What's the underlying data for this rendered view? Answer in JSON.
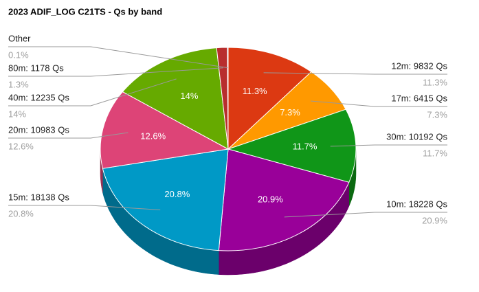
{
  "chart_data": {
    "type": "pie3d",
    "title": "2023 ADIF_LOG C21TS - Qs by band",
    "categories": [
      "12m: 9832 Qs",
      "17m: 6415 Qs",
      "30m: 10192 Qs",
      "10m: 18228 Qs",
      "15m: 18138 Qs",
      "20m: 10983 Qs",
      "40m: 12235 Qs",
      "80m: 1178 Qs",
      "Other"
    ],
    "values": [
      9832,
      6415,
      10192,
      18228,
      18138,
      10983,
      12235,
      1178,
      87
    ],
    "value_labels": [
      "11.3%",
      "7.3%",
      "11.7%",
      "20.9%",
      "20.8%",
      "12.6%",
      "14%",
      "1.3%",
      "0.1%"
    ],
    "colors": [
      "#dc3912",
      "#ff9900",
      "#109618",
      "#990099",
      "#0099c6",
      "#dd4477",
      "#66aa00",
      "#b82e2e",
      "#316395"
    ]
  }
}
